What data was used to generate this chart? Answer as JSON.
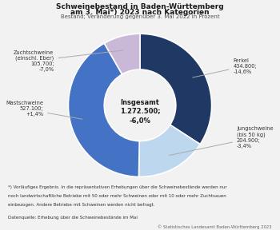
{
  "title_line1": "Schweinebestand in Baden-Württemberg",
  "title_line2": "am 3. Mai*) 2023 nach Kategorien",
  "subtitle": "Bestand; Veränderung gegenüber 3. Mai 2022 in Prozent",
  "center_label_1": "Insgesamt",
  "center_label_2": "1.272.500;",
  "center_label_3": "-6,0%",
  "segments": [
    {
      "label": "Ferkel",
      "value": 434800,
      "color": "#1f3864",
      "ann": "Ferkel\n434.800;\n-14,6%"
    },
    {
      "label": "Jungschweine (bis 50 kg)",
      "value": 204900,
      "color": "#bdd7ee",
      "ann": "Jungschweine\n(bis 50 kg)\n204.900;\n-3,4%"
    },
    {
      "label": "Mastschweine",
      "value": 527100,
      "color": "#4472c4",
      "ann": "Mastschweine\n527.100;\n+1,4%"
    },
    {
      "label": "Zuchtschweine (einschl. Eber)",
      "value": 105700,
      "color": "#c9b8d8",
      "ann": "Zuchtschweine\n(einschl. Eber)\n105.700;\n-7,0%"
    }
  ],
  "footnote_line1": "*) Vorläufiges Ergebnis. In die repräsentativen Erhebungen über die Schweinebestände werden nur",
  "footnote_line2": "noch landwirtschaftliche Betriebe mit 50 oder mehr Schweinen oder mit 10 oder mehr Zuchtsauen",
  "footnote_line3": "einbezogen. Andere Betriebe mit Schweinen werden nicht befragt.",
  "datasource": "Datenquelle: Erhebung über die Schweinebestände im Mai",
  "copyright": "© Statistisches Landesamt Baden-Württemberg 2023",
  "bg_color": "#f2f2f2"
}
